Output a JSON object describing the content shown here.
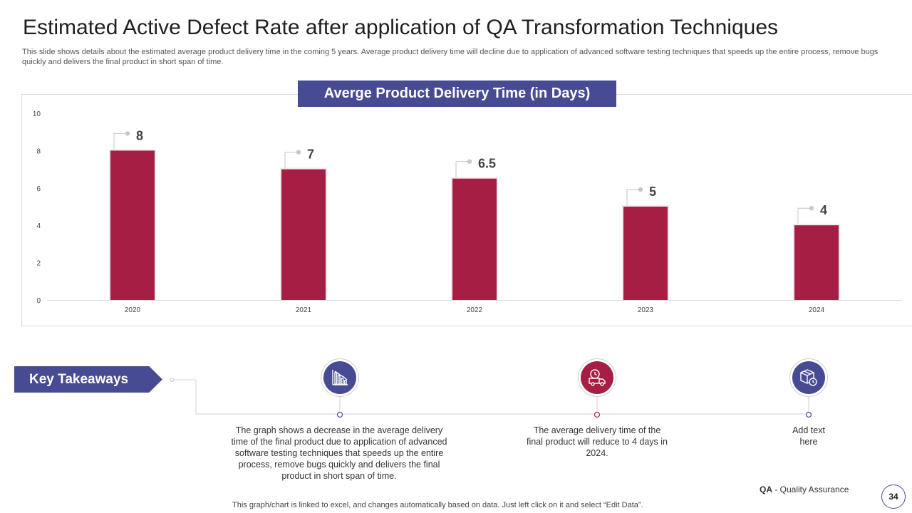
{
  "header": {
    "title": "Estimated Active Defect Rate after application of QA Transformation Techniques",
    "subtitle": "This slide shows details about the estimated average product delivery time in the coming 5 years. Average product delivery time will decline due to application of advanced software testing techniques that speeds up the entire process, remove bugs quickly and delivers the final product in short span of time."
  },
  "chart_data": {
    "type": "bar",
    "title": "Averge Product Delivery Time (in Days)",
    "categories": [
      "2020",
      "2021",
      "2022",
      "2023",
      "2024"
    ],
    "values": [
      8,
      7,
      6.5,
      5,
      4
    ],
    "data_labels": [
      "8",
      "7",
      "6.5",
      "5",
      "4"
    ],
    "yticks": [
      "0",
      "2",
      "4",
      "6",
      "8",
      "10"
    ],
    "ylim": [
      0,
      10
    ],
    "xlabel": "",
    "ylabel": "",
    "grid": false,
    "bar_color": "#a61e44"
  },
  "takeaways": {
    "label": "Key Takeaways",
    "items": [
      {
        "icon": "declining-chart-icon",
        "text": "The graph shows a decrease in the average delivery time of the final product due to application of advanced software testing techniques that speeds up the entire process, remove bugs quickly and delivers the final product in short span of time."
      },
      {
        "icon": "delivery-truck-clock-icon",
        "text": "The average delivery time of the final product will reduce to 4 days in 2024."
      },
      {
        "icon": "package-clock-icon",
        "text": "Add text here"
      }
    ]
  },
  "footer": {
    "qa_abbr": "QA",
    "qa_label": " - Quality Assurance",
    "page_number": "34",
    "note": "This graph/chart is linked to excel, and changes automatically based on data. Just left click on it and select “Edit Data”."
  },
  "colors": {
    "accent_blue": "#474b93",
    "accent_red": "#a61e44"
  }
}
